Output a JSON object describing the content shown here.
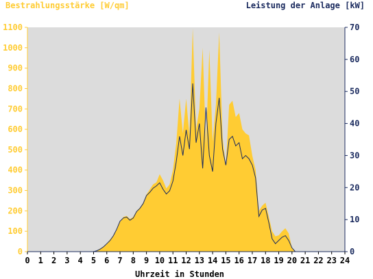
{
  "chart_data": {
    "type": "area",
    "title_left": "Bestrahlungsstärke [W/qm]",
    "title_right": "Leistung der Anlage [kW]",
    "xlabel": "Uhrzeit in Stunden",
    "x_ticks": [
      "0",
      "1",
      "2",
      "3",
      "4",
      "5",
      "6",
      "7",
      "8",
      "9",
      "10",
      "11",
      "12",
      "13",
      "14",
      "15",
      "16",
      "17",
      "18",
      "19",
      "20",
      "21",
      "22",
      "23",
      "24"
    ],
    "y_left_ticks": [
      "0",
      "100",
      "200",
      "300",
      "400",
      "500",
      "600",
      "700",
      "800",
      "900",
      "1000",
      "1100"
    ],
    "y_right_ticks": [
      "0",
      "10",
      "20",
      "30",
      "40",
      "50",
      "60",
      "70"
    ],
    "xlim": [
      0,
      24
    ],
    "ylim_left": [
      0,
      1100
    ],
    "ylim_right": [
      0,
      70
    ],
    "grid": false,
    "colors": {
      "plot_background": "#dcdcdc",
      "irradiance_fill": "#ffcc33",
      "power_line": "#1a2a5e",
      "left_axis_text": "#ffcc33",
      "right_axis_text": "#1a2a5e",
      "xlabel_text": "#000000"
    },
    "series": [
      {
        "name": "Bestrahlungsstärke [W/qm]",
        "axis": "left",
        "style": "area",
        "points": [
          [
            0,
            0
          ],
          [
            5,
            0
          ],
          [
            5.25,
            5
          ],
          [
            5.5,
            15
          ],
          [
            5.75,
            25
          ],
          [
            6,
            40
          ],
          [
            6.25,
            60
          ],
          [
            6.5,
            80
          ],
          [
            6.75,
            110
          ],
          [
            7,
            145
          ],
          [
            7.25,
            170
          ],
          [
            7.5,
            175
          ],
          [
            7.75,
            160
          ],
          [
            8,
            170
          ],
          [
            8.25,
            200
          ],
          [
            8.5,
            215
          ],
          [
            8.75,
            240
          ],
          [
            9,
            280
          ],
          [
            9.25,
            305
          ],
          [
            9.5,
            330
          ],
          [
            9.75,
            340
          ],
          [
            10,
            380
          ],
          [
            10.25,
            350
          ],
          [
            10.5,
            310
          ],
          [
            10.75,
            330
          ],
          [
            11,
            400
          ],
          [
            11.25,
            530
          ],
          [
            11.5,
            750
          ],
          [
            11.75,
            580
          ],
          [
            12,
            750
          ],
          [
            12.25,
            570
          ],
          [
            12.5,
            1095
          ],
          [
            12.75,
            600
          ],
          [
            13,
            700
          ],
          [
            13.25,
            1000
          ],
          [
            13.5,
            520
          ],
          [
            13.75,
            990
          ],
          [
            14,
            540
          ],
          [
            14.25,
            720
          ],
          [
            14.5,
            1075
          ],
          [
            14.75,
            560
          ],
          [
            15,
            420
          ],
          [
            15.25,
            720
          ],
          [
            15.5,
            740
          ],
          [
            15.75,
            660
          ],
          [
            16,
            680
          ],
          [
            16.25,
            600
          ],
          [
            16.5,
            580
          ],
          [
            16.75,
            570
          ],
          [
            17,
            470
          ],
          [
            17.25,
            400
          ],
          [
            17.5,
            200
          ],
          [
            17.75,
            225
          ],
          [
            18,
            240
          ],
          [
            18.25,
            170
          ],
          [
            18.5,
            100
          ],
          [
            18.75,
            75
          ],
          [
            19,
            80
          ],
          [
            19.25,
            100
          ],
          [
            19.5,
            115
          ],
          [
            19.75,
            90
          ],
          [
            20,
            20
          ],
          [
            20.25,
            0
          ],
          [
            24,
            0
          ]
        ]
      },
      {
        "name": "Leistung der Anlage [kW]",
        "axis": "right",
        "style": "line",
        "points": [
          [
            0,
            0
          ],
          [
            5,
            0
          ],
          [
            5.25,
            0.3
          ],
          [
            5.5,
            0.8
          ],
          [
            5.75,
            1.5
          ],
          [
            6,
            2.5
          ],
          [
            6.25,
            3.5
          ],
          [
            6.5,
            5
          ],
          [
            6.75,
            7
          ],
          [
            7,
            9.5
          ],
          [
            7.25,
            10.5
          ],
          [
            7.5,
            10.8
          ],
          [
            7.75,
            9.8
          ],
          [
            8,
            10.5
          ],
          [
            8.25,
            12.5
          ],
          [
            8.5,
            13.5
          ],
          [
            8.75,
            15
          ],
          [
            9,
            17.5
          ],
          [
            9.25,
            18.5
          ],
          [
            9.5,
            19.8
          ],
          [
            9.75,
            20.5
          ],
          [
            10,
            21.5
          ],
          [
            10.25,
            19.5
          ],
          [
            10.5,
            18
          ],
          [
            10.75,
            19
          ],
          [
            11,
            22
          ],
          [
            11.25,
            28
          ],
          [
            11.5,
            36
          ],
          [
            11.75,
            30
          ],
          [
            12,
            38
          ],
          [
            12.25,
            32
          ],
          [
            12.5,
            52.5
          ],
          [
            12.75,
            34
          ],
          [
            13,
            40
          ],
          [
            13.25,
            26
          ],
          [
            13.5,
            45
          ],
          [
            13.75,
            30
          ],
          [
            14,
            25
          ],
          [
            14.25,
            40
          ],
          [
            14.5,
            48
          ],
          [
            14.75,
            32
          ],
          [
            15,
            27
          ],
          [
            15.25,
            35
          ],
          [
            15.5,
            36
          ],
          [
            15.75,
            33
          ],
          [
            16,
            34
          ],
          [
            16.25,
            29
          ],
          [
            16.5,
            30
          ],
          [
            16.75,
            29
          ],
          [
            17,
            27
          ],
          [
            17.25,
            23
          ],
          [
            17.5,
            11
          ],
          [
            17.75,
            13
          ],
          [
            18,
            13.5
          ],
          [
            18.25,
            9
          ],
          [
            18.5,
            4
          ],
          [
            18.75,
            2.5
          ],
          [
            19,
            3.5
          ],
          [
            19.25,
            4.5
          ],
          [
            19.5,
            5
          ],
          [
            19.75,
            3.5
          ],
          [
            20,
            1.2
          ],
          [
            20.25,
            0
          ],
          [
            24,
            0
          ]
        ]
      }
    ]
  }
}
